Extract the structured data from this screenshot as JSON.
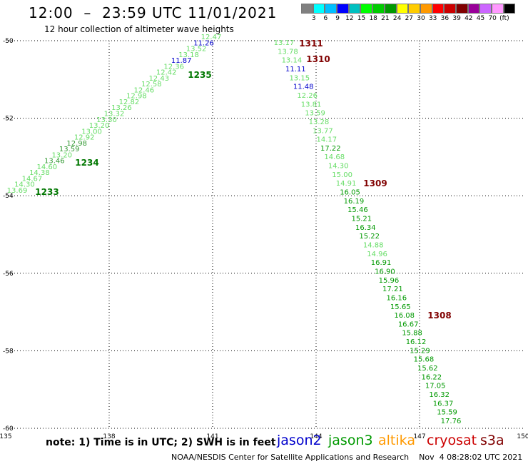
{
  "title": "12:00  –  23:59 UTC 11/01/2021",
  "subtitle": "12 hour collection of altimeter wave heights",
  "legend": {
    "colors": [
      "#808080",
      "#00ffff",
      "#00bfff",
      "#0000ff",
      "#00c0c0",
      "#00ff00",
      "#00cc00",
      "#009900",
      "#ffff00",
      "#ffcc00",
      "#ff9900",
      "#ff0000",
      "#cc0000",
      "#800000",
      "#990099",
      "#cc66ff",
      "#ff99ff",
      "#000000"
    ],
    "labels": [
      "3",
      "6",
      "9",
      "12",
      "15",
      "18",
      "21",
      "24",
      "27",
      "30",
      "33",
      "36",
      "39",
      "42",
      "45",
      "70",
      "(ft)"
    ]
  },
  "map_data": {
    "lon_ticks": [
      "135",
      "138",
      "141",
      "144",
      "147",
      "150"
    ],
    "lat_ticks": [
      "-50",
      "-52",
      "-54",
      "-56",
      "-58",
      "-60"
    ],
    "pass_left": [
      {
        "v": "13.69",
        "c": "#66dd66"
      },
      {
        "v": "14.30",
        "c": "#66dd66"
      },
      {
        "v": "14.67",
        "c": "#66dd66"
      },
      {
        "v": "14.38",
        "c": "#66dd66"
      },
      {
        "v": "14.60",
        "c": "#66dd66"
      },
      {
        "v": "13.46",
        "c": "#339933"
      },
      {
        "v": "13.20",
        "c": "#66dd66"
      },
      {
        "v": "13.59",
        "c": "#339933"
      },
      {
        "v": "12.98",
        "c": "#339933"
      },
      {
        "v": "12.92",
        "c": "#66dd66"
      },
      {
        "v": "13.00",
        "c": "#66dd66"
      },
      {
        "v": "13.20",
        "c": "#66dd66"
      },
      {
        "v": "13.30",
        "c": "#66dd66"
      },
      {
        "v": "13.32",
        "c": "#66dd66"
      },
      {
        "v": "13.26",
        "c": "#66dd66"
      },
      {
        "v": "12.82",
        "c": "#66dd66"
      },
      {
        "v": "12.98",
        "c": "#66dd66"
      },
      {
        "v": "12.46",
        "c": "#66dd66"
      },
      {
        "v": "12.58",
        "c": "#66dd66"
      },
      {
        "v": "12.43",
        "c": "#66dd66"
      },
      {
        "v": "12.42",
        "c": "#66dd66"
      },
      {
        "v": "12.36",
        "c": "#66dd66"
      },
      {
        "v": "11.87",
        "c": "#0000cc"
      },
      {
        "v": "13.18",
        "c": "#66dd66"
      },
      {
        "v": "13.52",
        "c": "#66dd66"
      },
      {
        "v": "11.26",
        "c": "#0000cc"
      },
      {
        "v": "12.47",
        "c": "#66dd66"
      }
    ],
    "pass_left_times": [
      {
        "v": "1233",
        "c": "#007700"
      },
      {
        "v": "1234",
        "c": "#007700"
      },
      {
        "v": "1235",
        "c": "#007700"
      }
    ],
    "pass_right": [
      {
        "v": "13.17",
        "c": "#66dd66"
      },
      {
        "v": "13.78",
        "c": "#66dd66"
      },
      {
        "v": "13.14",
        "c": "#66dd66"
      },
      {
        "v": "11.11",
        "c": "#0000cc"
      },
      {
        "v": "13.15",
        "c": "#66dd66"
      },
      {
        "v": "11.48",
        "c": "#0000cc"
      },
      {
        "v": "12.26",
        "c": "#66dd66"
      },
      {
        "v": "13.81",
        "c": "#66dd66"
      },
      {
        "v": "13.59",
        "c": "#66dd66"
      },
      {
        "v": "13.28",
        "c": "#66dd66"
      },
      {
        "v": "13.77",
        "c": "#66dd66"
      },
      {
        "v": "14.17",
        "c": "#66dd66"
      },
      {
        "v": "17.22",
        "c": "#009900"
      },
      {
        "v": "14.68",
        "c": "#66dd66"
      },
      {
        "v": "14.30",
        "c": "#66dd66"
      },
      {
        "v": "15.00",
        "c": "#66dd66"
      },
      {
        "v": "14.91",
        "c": "#66dd66"
      },
      {
        "v": "16.05",
        "c": "#009900"
      },
      {
        "v": "16.19",
        "c": "#009900"
      },
      {
        "v": "15.46",
        "c": "#009900"
      },
      {
        "v": "15.21",
        "c": "#009900"
      },
      {
        "v": "16.34",
        "c": "#009900"
      },
      {
        "v": "15.22",
        "c": "#009900"
      },
      {
        "v": "14.88",
        "c": "#66dd66"
      },
      {
        "v": "14.96",
        "c": "#66dd66"
      },
      {
        "v": "16.91",
        "c": "#009900"
      },
      {
        "v": "16.90",
        "c": "#009900"
      },
      {
        "v": "15.96",
        "c": "#009900"
      },
      {
        "v": "17.21",
        "c": "#009900"
      },
      {
        "v": "16.16",
        "c": "#009900"
      },
      {
        "v": "15.65",
        "c": "#009900"
      },
      {
        "v": "16.08",
        "c": "#009900"
      },
      {
        "v": "16.67",
        "c": "#009900"
      },
      {
        "v": "15.88",
        "c": "#009900"
      },
      {
        "v": "16.12",
        "c": "#009900"
      },
      {
        "v": "15.29",
        "c": "#009900"
      },
      {
        "v": "15.68",
        "c": "#009900"
      },
      {
        "v": "15.62",
        "c": "#009900"
      },
      {
        "v": "16.22",
        "c": "#009900"
      },
      {
        "v": "17.05",
        "c": "#009900"
      },
      {
        "v": "16.32",
        "c": "#009900"
      },
      {
        "v": "16.37",
        "c": "#009900"
      },
      {
        "v": "15.59",
        "c": "#009900"
      },
      {
        "v": "17.76",
        "c": "#009900"
      }
    ],
    "pass_right_times": [
      {
        "v": "1311",
        "c": "#800000"
      },
      {
        "v": "1310",
        "c": "#800000"
      },
      {
        "v": "1309",
        "c": "#800000"
      },
      {
        "v": "1308",
        "c": "#800000"
      }
    ]
  },
  "footer": {
    "note": "note:  1) Time is in UTC;  2) SWH is in feet",
    "satellites": [
      {
        "name": "jason2",
        "color": "#0000cc"
      },
      {
        "name": "jason3",
        "color": "#009900"
      },
      {
        "name": "altika",
        "color": "#ff9900"
      },
      {
        "name": "cryosat",
        "color": "#cc0000"
      },
      {
        "name": "s3a",
        "color": "#800000"
      }
    ],
    "credit": "NOAA/NESDIS Center for Satellite Applications and Research    Nov  4 08:28:02 UTC 2021"
  }
}
